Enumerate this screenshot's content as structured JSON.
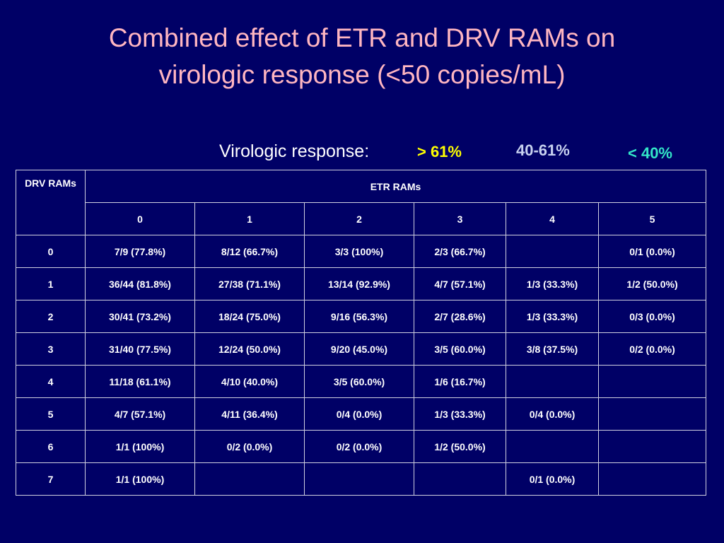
{
  "title_line1": "Combined effect of ETR and DRV RAMs on",
  "title_line2": "virologic response (<50 copies/mL)",
  "legend": {
    "label": "Virologic response:",
    "high": "> 61%",
    "mid": "40-61%",
    "low": "< 40%"
  },
  "colors": {
    "background": "#000066",
    "title": "#ffb6c1",
    "high": "#ffff00",
    "mid": "#c8d2f0",
    "low": "#33e6c8",
    "muted": "#9090a8"
  },
  "table": {
    "row_header": "DRV RAMs",
    "col_group": "ETR RAMs",
    "cols": [
      "0",
      "1",
      "2",
      "3",
      "4",
      "5"
    ],
    "rows": [
      {
        "label": "0",
        "cells": [
          {
            "v": "7/9 (77.8%)",
            "c": "hi"
          },
          {
            "v": "8/12 (66.7%)",
            "c": "hi"
          },
          {
            "v": "3/3 (100%)",
            "c": "hi"
          },
          {
            "v": "2/3 (66.7%)",
            "c": "hi"
          },
          {
            "v": "",
            "c": ""
          },
          {
            "v": "0/1 (0.0%)",
            "c": "lo"
          }
        ]
      },
      {
        "label": "1",
        "cells": [
          {
            "v": "36/44 (81.8%)",
            "c": "hi"
          },
          {
            "v": "27/38 (71.1%)",
            "c": "hi"
          },
          {
            "v": "13/14 (92.9%)",
            "c": "hi"
          },
          {
            "v": "4/7 (57.1%)",
            "c": "mid"
          },
          {
            "v": "1/3 (33.3%)",
            "c": "lo"
          },
          {
            "v": "1/2 (50.0%)",
            "c": "mid"
          }
        ]
      },
      {
        "label": "2",
        "cells": [
          {
            "v": "30/41 (73.2%)",
            "c": "hi"
          },
          {
            "v": "18/24 (75.0%)",
            "c": "hi"
          },
          {
            "v": "9/16 (56.3%)",
            "c": "mid"
          },
          {
            "v": "2/7 (28.6%)",
            "c": "lo"
          },
          {
            "v": "1/3 (33.3%)",
            "c": "lo"
          },
          {
            "v": "0/3 (0.0%)",
            "c": "lo"
          }
        ]
      },
      {
        "label": "3",
        "cells": [
          {
            "v": "31/40 (77.5%)",
            "c": "hi"
          },
          {
            "v": "12/24 (50.0%)",
            "c": "mid"
          },
          {
            "v": "9/20 (45.0%)",
            "c": "mid"
          },
          {
            "v": "3/5 (60.0%)",
            "c": "mid"
          },
          {
            "v": "3/8 (37.5%)",
            "c": "lo"
          },
          {
            "v": "0/2 (0.0%)",
            "c": "lo"
          }
        ]
      },
      {
        "label": "4",
        "cells": [
          {
            "v": "11/18 (61.1%)",
            "c": "hi"
          },
          {
            "v": "4/10 (40.0%)",
            "c": "mid"
          },
          {
            "v": "3/5 (60.0%)",
            "c": "mid"
          },
          {
            "v": "1/6 (16.7%)",
            "c": "lo"
          },
          {
            "v": "",
            "c": ""
          },
          {
            "v": "",
            "c": ""
          }
        ]
      },
      {
        "label": "5",
        "cells": [
          {
            "v": "4/7 (57.1%)",
            "c": "gray"
          },
          {
            "v": "4/11 (36.4%)",
            "c": "lo"
          },
          {
            "v": "0/4 (0.0%)",
            "c": "lo"
          },
          {
            "v": "1/3 (33.3%)",
            "c": "lo"
          },
          {
            "v": "0/4 (0.0%)",
            "c": "lo"
          },
          {
            "v": "",
            "c": ""
          }
        ]
      },
      {
        "label": "6",
        "cells": [
          {
            "v": "1/1 (100%)",
            "c": "hi"
          },
          {
            "v": "0/2 (0.0%)",
            "c": "lo"
          },
          {
            "v": "0/2 (0.0%)",
            "c": "lo"
          },
          {
            "v": "1/2 (50.0%)",
            "c": "mid"
          },
          {
            "v": "",
            "c": ""
          },
          {
            "v": "",
            "c": ""
          }
        ]
      },
      {
        "label": "7",
        "cells": [
          {
            "v": "1/1 (100%)",
            "c": "hi"
          },
          {
            "v": "",
            "c": ""
          },
          {
            "v": "",
            "c": ""
          },
          {
            "v": "",
            "c": ""
          },
          {
            "v": "0/1 (0.0%)",
            "c": "lo"
          },
          {
            "v": "",
            "c": ""
          }
        ]
      }
    ]
  }
}
